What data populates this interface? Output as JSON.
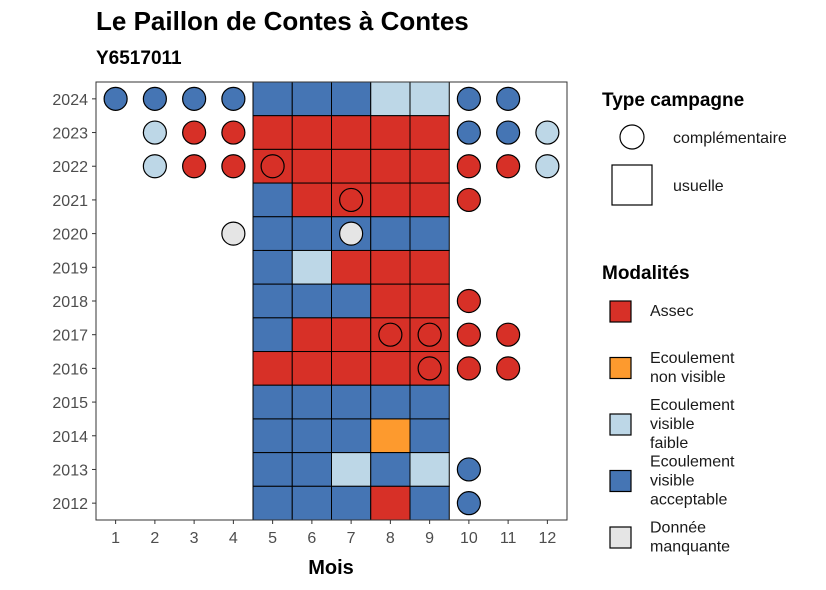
{
  "chart_data": {
    "type": "heatmap",
    "title": "Le Paillon de Contes à Contes",
    "subtitle": "Y6517011",
    "xlabel": "Mois",
    "ylabel": "",
    "x_categories": [
      "1",
      "2",
      "3",
      "4",
      "5",
      "6",
      "7",
      "8",
      "9",
      "10",
      "11",
      "12"
    ],
    "y_categories": [
      "2012",
      "2013",
      "2014",
      "2015",
      "2016",
      "2017",
      "2018",
      "2019",
      "2020",
      "2021",
      "2022",
      "2023",
      "2024"
    ],
    "modalites": [
      {
        "key": "assec",
        "label": "Assec",
        "color": "#d73027"
      },
      {
        "key": "non_visible",
        "label": "Ecoulement non visible",
        "color": "#fd9a2e"
      },
      {
        "key": "faible",
        "label": "Ecoulement visible faible",
        "color": "#bdd7e7"
      },
      {
        "key": "acceptable",
        "label": "Ecoulement visible acceptable",
        "color": "#4575b4"
      },
      {
        "key": "manquante",
        "label": "Donnée manquante",
        "color": "#e5e5e5"
      }
    ],
    "campagne_types": [
      {
        "key": "complementaire",
        "label": "complémentaire",
        "shape": "circle"
      },
      {
        "key": "usuelle",
        "label": "usuelle",
        "shape": "square"
      }
    ],
    "usuelle": [
      {
        "year": "2024",
        "values": [
          "acceptable",
          "acceptable",
          "acceptable",
          "faible",
          "faible"
        ]
      },
      {
        "year": "2023",
        "values": [
          "assec",
          "assec",
          "assec",
          "assec",
          "assec"
        ]
      },
      {
        "year": "2022",
        "values": [
          "assec",
          "assec",
          "assec",
          "assec",
          "assec"
        ]
      },
      {
        "year": "2021",
        "values": [
          "acceptable",
          "assec",
          "assec",
          "assec",
          "assec"
        ]
      },
      {
        "year": "2020",
        "values": [
          "acceptable",
          "acceptable",
          "acceptable",
          "acceptable",
          "acceptable"
        ]
      },
      {
        "year": "2019",
        "values": [
          "acceptable",
          "faible",
          "assec",
          "assec",
          "assec"
        ]
      },
      {
        "year": "2018",
        "values": [
          "acceptable",
          "acceptable",
          "acceptable",
          "assec",
          "assec"
        ]
      },
      {
        "year": "2017",
        "values": [
          "acceptable",
          "assec",
          "assec",
          "assec",
          "assec"
        ]
      },
      {
        "year": "2016",
        "values": [
          "assec",
          "assec",
          "assec",
          "assec",
          "assec"
        ]
      },
      {
        "year": "2015",
        "values": [
          "acceptable",
          "acceptable",
          "acceptable",
          "acceptable",
          "acceptable"
        ]
      },
      {
        "year": "2014",
        "values": [
          "acceptable",
          "acceptable",
          "acceptable",
          "non_visible",
          "acceptable"
        ]
      },
      {
        "year": "2013",
        "values": [
          "acceptable",
          "acceptable",
          "faible",
          "acceptable",
          "faible"
        ]
      },
      {
        "year": "2012",
        "values": [
          "acceptable",
          "acceptable",
          "acceptable",
          "assec",
          "acceptable"
        ]
      }
    ],
    "usuelle_months": [
      "5",
      "6",
      "7",
      "8",
      "9"
    ],
    "complementaire": [
      {
        "year": "2024",
        "month": "1",
        "value": "acceptable"
      },
      {
        "year": "2024",
        "month": "2",
        "value": "acceptable"
      },
      {
        "year": "2024",
        "month": "3",
        "value": "acceptable"
      },
      {
        "year": "2024",
        "month": "4",
        "value": "acceptable"
      },
      {
        "year": "2024",
        "month": "10",
        "value": "acceptable"
      },
      {
        "year": "2024",
        "month": "11",
        "value": "acceptable"
      },
      {
        "year": "2023",
        "month": "2",
        "value": "faible"
      },
      {
        "year": "2023",
        "month": "3",
        "value": "assec"
      },
      {
        "year": "2023",
        "month": "4",
        "value": "assec"
      },
      {
        "year": "2023",
        "month": "10",
        "value": "acceptable"
      },
      {
        "year": "2023",
        "month": "11",
        "value": "acceptable"
      },
      {
        "year": "2023",
        "month": "12",
        "value": "faible"
      },
      {
        "year": "2022",
        "month": "2",
        "value": "faible"
      },
      {
        "year": "2022",
        "month": "3",
        "value": "assec"
      },
      {
        "year": "2022",
        "month": "4",
        "value": "assec"
      },
      {
        "year": "2022",
        "month": "5",
        "value": "assec"
      },
      {
        "year": "2022",
        "month": "10",
        "value": "assec"
      },
      {
        "year": "2022",
        "month": "11",
        "value": "assec"
      },
      {
        "year": "2022",
        "month": "12",
        "value": "faible"
      },
      {
        "year": "2021",
        "month": "7",
        "value": "assec"
      },
      {
        "year": "2021",
        "month": "10",
        "value": "assec"
      },
      {
        "year": "2020",
        "month": "4",
        "value": "manquante"
      },
      {
        "year": "2020",
        "month": "7",
        "value": "manquante"
      },
      {
        "year": "2018",
        "month": "10",
        "value": "assec"
      },
      {
        "year": "2017",
        "month": "8",
        "value": "assec"
      },
      {
        "year": "2017",
        "month": "9",
        "value": "assec"
      },
      {
        "year": "2017",
        "month": "10",
        "value": "assec"
      },
      {
        "year": "2017",
        "month": "11",
        "value": "assec"
      },
      {
        "year": "2016",
        "month": "9",
        "value": "assec"
      },
      {
        "year": "2016",
        "month": "10",
        "value": "assec"
      },
      {
        "year": "2016",
        "month": "11",
        "value": "assec"
      },
      {
        "year": "2013",
        "month": "10",
        "value": "acceptable"
      },
      {
        "year": "2012",
        "month": "10",
        "value": "acceptable"
      }
    ],
    "legend": {
      "campagne_title": "Type campagne",
      "modalites_title": "Modalités",
      "placement": "right"
    },
    "grid": false
  }
}
